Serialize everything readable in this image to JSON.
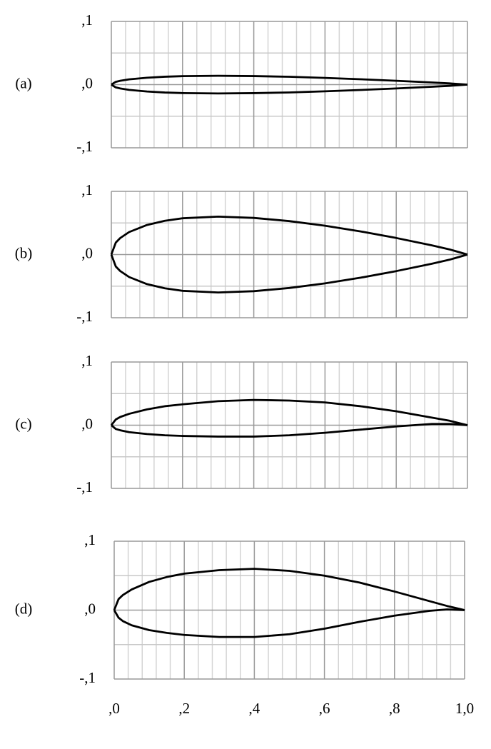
{
  "chart_data": [
    {
      "type": "line",
      "label": "(a)",
      "x": [
        0,
        0.0125,
        0.025,
        0.05,
        0.1,
        0.15,
        0.2,
        0.3,
        0.4,
        0.5,
        0.6,
        0.7,
        0.8,
        0.9,
        0.95,
        1.0
      ],
      "series": [
        {
          "color": "#000000",
          "values": [
            0,
            0.0044,
            0.0061,
            0.0083,
            0.0109,
            0.0125,
            0.0134,
            0.014,
            0.0135,
            0.0124,
            0.0106,
            0.0085,
            0.0061,
            0.0034,
            0.0019,
            0
          ]
        },
        {
          "color": "#000000",
          "values": [
            0,
            -0.0044,
            -0.0061,
            -0.0083,
            -0.0109,
            -0.0125,
            -0.0134,
            -0.014,
            -0.0135,
            -0.0124,
            -0.0106,
            -0.0085,
            -0.0061,
            -0.0034,
            -0.0019,
            0
          ]
        }
      ],
      "xlim": [
        0,
        1
      ],
      "ylim": [
        -0.1,
        0.1
      ],
      "yticks": [
        {
          "value": 0.1,
          "label": ",1"
        },
        {
          "value": 0,
          "label": ",0"
        },
        {
          "value": -0.1,
          "label": "-,1"
        }
      ],
      "x_grid": [
        0,
        0.2,
        0.4,
        0.6,
        0.8,
        1.0
      ],
      "x_minor_grid": [
        0.04,
        0.08,
        0.12,
        0.16,
        0.24,
        0.28,
        0.32,
        0.36,
        0.44,
        0.48,
        0.52,
        0.56,
        0.64,
        0.68,
        0.72,
        0.76,
        0.84,
        0.88,
        0.92,
        0.96
      ],
      "y_minor_grid": [
        -0.05,
        0.05
      ],
      "grid": true
    },
    {
      "type": "line",
      "label": "(b)",
      "x": [
        0,
        0.0125,
        0.025,
        0.05,
        0.1,
        0.15,
        0.2,
        0.3,
        0.4,
        0.5,
        0.6,
        0.7,
        0.8,
        0.9,
        0.95,
        1.0
      ],
      "series": [
        {
          "color": "#000000",
          "values": [
            0,
            0.0189,
            0.0261,
            0.0356,
            0.0468,
            0.0534,
            0.0574,
            0.06,
            0.058,
            0.0529,
            0.0456,
            0.0366,
            0.0262,
            0.0145,
            0.0081,
            0
          ]
        },
        {
          "color": "#000000",
          "values": [
            0,
            -0.0189,
            -0.0261,
            -0.0356,
            -0.0468,
            -0.0534,
            -0.0574,
            -0.06,
            -0.058,
            -0.0529,
            -0.0456,
            -0.0366,
            -0.0262,
            -0.0145,
            -0.0081,
            0
          ]
        }
      ],
      "xlim": [
        0,
        1
      ],
      "ylim": [
        -0.1,
        0.1
      ],
      "yticks": [
        {
          "value": 0.1,
          "label": ",1"
        },
        {
          "value": 0,
          "label": ",0"
        },
        {
          "value": -0.1,
          "label": "-,1"
        }
      ],
      "x_grid": [
        0,
        0.2,
        0.4,
        0.6,
        0.8,
        1.0
      ],
      "x_minor_grid": [
        0.04,
        0.08,
        0.12,
        0.16,
        0.24,
        0.28,
        0.32,
        0.36,
        0.44,
        0.48,
        0.52,
        0.56,
        0.64,
        0.68,
        0.72,
        0.76,
        0.84,
        0.88,
        0.92,
        0.96
      ],
      "y_minor_grid": [
        -0.05,
        0.05
      ],
      "grid": true
    },
    {
      "type": "line",
      "label": "(c)",
      "x": [
        0,
        0.0125,
        0.025,
        0.05,
        0.1,
        0.15,
        0.2,
        0.3,
        0.4,
        0.5,
        0.6,
        0.7,
        0.8,
        0.9,
        0.95,
        1.0
      ],
      "series": [
        {
          "color": "#000000",
          "values": [
            0,
            0.009,
            0.013,
            0.018,
            0.025,
            0.03,
            0.033,
            0.038,
            0.04,
            0.039,
            0.036,
            0.03,
            0.022,
            0.012,
            0.007,
            0
          ]
        },
        {
          "color": "#000000",
          "values": [
            0,
            -0.006,
            -0.008,
            -0.011,
            -0.014,
            -0.016,
            -0.017,
            -0.018,
            -0.018,
            -0.016,
            -0.012,
            -0.007,
            -0.002,
            0.002,
            0.002,
            0
          ]
        }
      ],
      "xlim": [
        0,
        1
      ],
      "ylim": [
        -0.1,
        0.1
      ],
      "yticks": [
        {
          "value": 0.1,
          "label": ",1"
        },
        {
          "value": 0,
          "label": ",0"
        },
        {
          "value": -0.1,
          "label": "-,1"
        }
      ],
      "x_grid": [
        0,
        0.2,
        0.4,
        0.6,
        0.8,
        1.0
      ],
      "x_minor_grid": [
        0.04,
        0.08,
        0.12,
        0.16,
        0.24,
        0.28,
        0.32,
        0.36,
        0.44,
        0.48,
        0.52,
        0.56,
        0.64,
        0.68,
        0.72,
        0.76,
        0.84,
        0.88,
        0.92,
        0.96
      ],
      "y_minor_grid": [
        -0.05,
        0.05
      ],
      "grid": true
    },
    {
      "type": "line",
      "label": "(d)",
      "x": [
        0,
        0.0125,
        0.025,
        0.05,
        0.1,
        0.15,
        0.2,
        0.3,
        0.4,
        0.5,
        0.6,
        0.7,
        0.8,
        0.9,
        0.95,
        1.0
      ],
      "series": [
        {
          "color": "#000000",
          "values": [
            0,
            0.016,
            0.022,
            0.03,
            0.041,
            0.048,
            0.053,
            0.058,
            0.06,
            0.057,
            0.05,
            0.04,
            0.027,
            0.013,
            0.006,
            0
          ]
        },
        {
          "color": "#000000",
          "values": [
            0,
            -0.011,
            -0.016,
            -0.022,
            -0.029,
            -0.033,
            -0.036,
            -0.039,
            -0.039,
            -0.035,
            -0.027,
            -0.017,
            -0.008,
            -0.001,
            0.001,
            0
          ]
        }
      ],
      "xlim": [
        0,
        1
      ],
      "ylim": [
        -0.1,
        0.1
      ],
      "yticks": [
        {
          "value": 0.1,
          "label": ",1"
        },
        {
          "value": 0,
          "label": ",0"
        },
        {
          "value": -0.1,
          "label": "-,1"
        }
      ],
      "xticks": [
        {
          "value": 0,
          "label": ",0"
        },
        {
          "value": 0.2,
          "label": ",2"
        },
        {
          "value": 0.4,
          "label": ",4"
        },
        {
          "value": 0.6,
          "label": ",6"
        },
        {
          "value": 0.8,
          "label": ",8"
        },
        {
          "value": 1.0,
          "label": "1,0"
        }
      ],
      "x_minor_grid": [
        0.04,
        0.08,
        0.12,
        0.16,
        0.24,
        0.28,
        0.32,
        0.36,
        0.44,
        0.48,
        0.52,
        0.56,
        0.64,
        0.68,
        0.72,
        0.76,
        0.84,
        0.88,
        0.92,
        0.96
      ],
      "y_minor_grid": [
        -0.05,
        0.05
      ],
      "grid": true
    }
  ]
}
